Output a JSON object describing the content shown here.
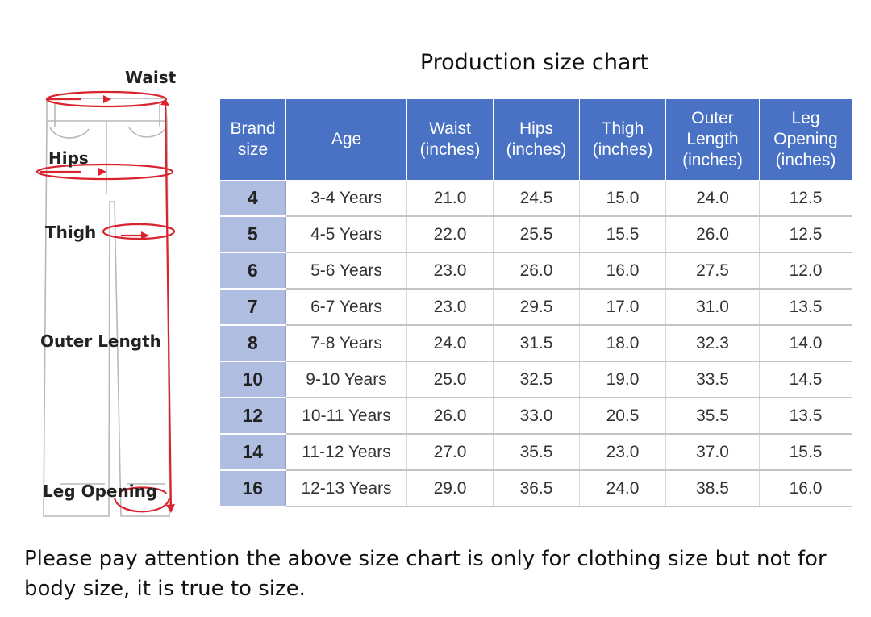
{
  "title": "Production size chart",
  "diagram": {
    "labels": {
      "waist": "Waist",
      "hips": "Hips",
      "thigh": "Thigh",
      "outer_length": "Outer Length",
      "leg_opening": "Leg Opening"
    },
    "accent_color": "#d9242f",
    "icon": "pants-measurement-diagram"
  },
  "table": {
    "headers": [
      "Brand\nsize",
      "Age",
      "Waist\n(inches)",
      "Hips\n(inches)",
      "Thigh\n(inches)",
      "Outer\nLength\n(inches)",
      "Leg\nOpening\n(inches)"
    ],
    "header_color": "#4a72c4",
    "brand_column_color": "#aebde0",
    "rows": [
      [
        "4",
        "3-4 Years",
        "21.0",
        "24.5",
        "15.0",
        "24.0",
        "12.5"
      ],
      [
        "5",
        "4-5 Years",
        "22.0",
        "25.5",
        "15.5",
        "26.0",
        "12.5"
      ],
      [
        "6",
        "5-6 Years",
        "23.0",
        "26.0",
        "16.0",
        "27.5",
        "12.0"
      ],
      [
        "7",
        "6-7 Years",
        "23.0",
        "29.5",
        "17.0",
        "31.0",
        "13.5"
      ],
      [
        "8",
        "7-8 Years",
        "24.0",
        "31.5",
        "18.0",
        "32.3",
        "14.0"
      ],
      [
        "10",
        "9-10 Years",
        "25.0",
        "32.5",
        "19.0",
        "33.5",
        "14.5"
      ],
      [
        "12",
        "10-11 Years",
        "26.0",
        "33.0",
        "20.5",
        "35.5",
        "13.5"
      ],
      [
        "14",
        "11-12 Years",
        "27.0",
        "35.5",
        "23.0",
        "37.0",
        "15.5"
      ],
      [
        "16",
        "12-13 Years",
        "29.0",
        "36.5",
        "24.0",
        "38.5",
        "16.0"
      ]
    ]
  },
  "note": "Please pay attention the above size chart is only for clothing size but not for body size, it is true to size."
}
